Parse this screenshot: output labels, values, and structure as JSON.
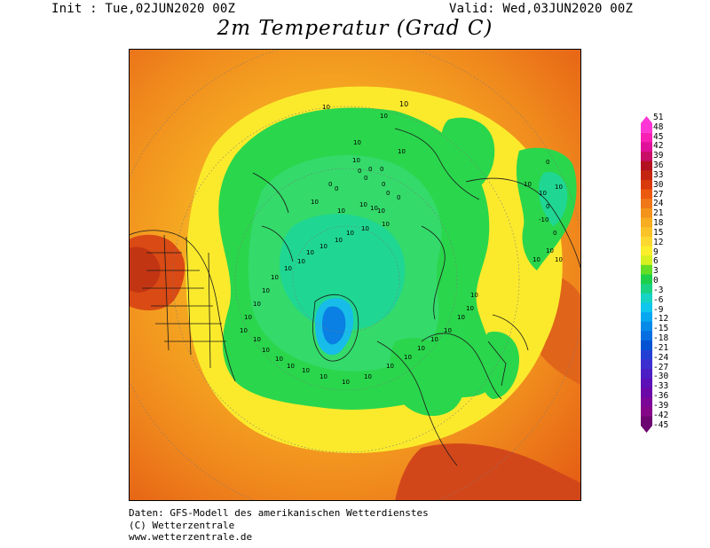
{
  "header": {
    "init": "Init : Tue,02JUN2020 00Z",
    "valid": "Valid: Wed,03JUN2020 00Z",
    "title": "2m Temperatur (Grad C)"
  },
  "footer": {
    "line1": "Daten: GFS-Modell des amerikanischen Wetterdienstes",
    "line2": "(C) Wetterzentrale",
    "line3": "www.wetterzentrale.de"
  },
  "colorbar": {
    "labels": [
      "51",
      "48",
      "45",
      "42",
      "39",
      "36",
      "33",
      "30",
      "27",
      "24",
      "21",
      "18",
      "15",
      "12",
      "9",
      "6",
      "3",
      "0",
      "-3",
      "-6",
      "-9",
      "-12",
      "-15",
      "-18",
      "-21",
      "-24",
      "-27",
      "-30",
      "-33",
      "-36",
      "-39",
      "-42",
      "-45"
    ],
    "colors": [
      "#ff35d6",
      "#f81fb4",
      "#e0109a",
      "#c80e66",
      "#b21220",
      "#c42510",
      "#d83a0c",
      "#ec5a10",
      "#f07818",
      "#f4941c",
      "#f7ad20",
      "#fac428",
      "#fcd830",
      "#fbee2a",
      "#d6f020",
      "#64dd26",
      "#1cd04a",
      "#1ad283",
      "#16d4c4",
      "#0fc6ec",
      "#07a8f0",
      "#068ae8",
      "#066ee0",
      "#0452d2",
      "#2440d4",
      "#3c2fcf",
      "#4c1fc4",
      "#5c10b8",
      "#6c08a8",
      "#7c0698",
      "#86068a",
      "#6c0670"
    ]
  },
  "map": {
    "contour_label": "10",
    "green_labels": [
      "10",
      "10",
      "10",
      "10",
      "10",
      "0",
      "0",
      "0",
      "0",
      "0",
      "0",
      "0",
      "0",
      "0",
      "10",
      "10",
      "10",
      "10",
      "10",
      "10",
      "10",
      "10",
      "10",
      "10",
      "10",
      "10",
      "10",
      "10",
      "10",
      "10",
      "10",
      "10",
      "10",
      "10",
      "10",
      "10",
      "10",
      "10",
      "10",
      "10",
      "10",
      "10",
      "10",
      "10",
      "10",
      "10",
      "10",
      "10"
    ],
    "asia_labels": [
      "0",
      "10",
      "10",
      "10",
      "0",
      "-10",
      "0",
      "10",
      "10",
      "10"
    ]
  }
}
